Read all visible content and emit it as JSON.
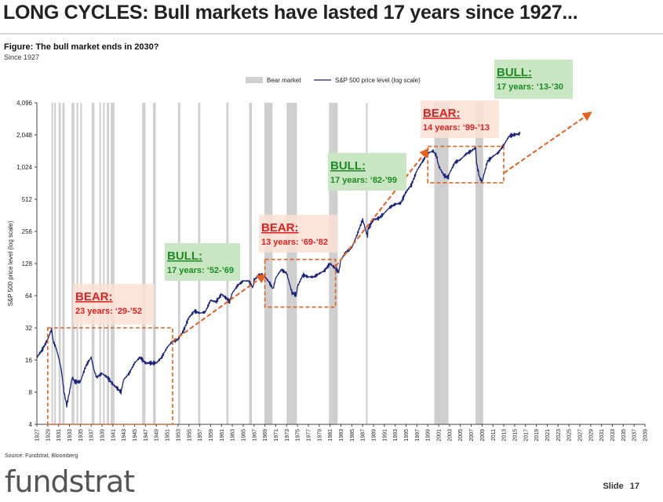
{
  "header": {
    "title": "LONG CYCLES: Bull markets have lasted 17 years since 1927...",
    "figure_title": "Figure: The bull market ends in 2030?",
    "figure_subtitle": "Since 1927"
  },
  "footer": {
    "source": "Source: Fundstrat, Bloomberg",
    "logo_text": "fundstrat",
    "slide_label": "Slide",
    "slide_number": "17"
  },
  "colors": {
    "line": "#1a237e",
    "bear_band": "#cfcfcf",
    "arrow": "#e8601c",
    "bull_box": "#c9e7c2",
    "bull_text": "#1e8a24",
    "bear_box": "#fbe0d4",
    "bear_text": "#e02020"
  },
  "chart_data": {
    "type": "line",
    "ylabel": "S&P 500 price level (log scale)",
    "y_scale": "log2",
    "ylim": [
      4,
      4096
    ],
    "y_ticks": [
      "4,096",
      "2,048",
      "1,024",
      "512",
      "256",
      "128",
      "64",
      "32",
      "16",
      "8",
      "4"
    ],
    "xlim": [
      1927,
      2039
    ],
    "x_ticks": [
      "1927",
      "1929",
      "1931",
      "1933",
      "1935",
      "1937",
      "1939",
      "1941",
      "1943",
      "1945",
      "1947",
      "1949",
      "1951",
      "1953",
      "1955",
      "1957",
      "1959",
      "1961",
      "1963",
      "1965",
      "1967",
      "1969",
      "1971",
      "1973",
      "1975",
      "1977",
      "1979",
      "1981",
      "1983",
      "1985",
      "1987",
      "1989",
      "1991",
      "1993",
      "1995",
      "1997",
      "1999",
      "2001",
      "2003",
      "2005",
      "2007",
      "2009",
      "2011",
      "2013",
      "2015",
      "2017",
      "2019",
      "2021",
      "2023",
      "2025",
      "2027",
      "2029",
      "2031",
      "2033",
      "2035",
      "2037",
      "2039"
    ],
    "legend": [
      {
        "name": "Bear market",
        "kind": "band"
      },
      {
        "name": "S&P 500 price level (log scale)",
        "kind": "line"
      }
    ],
    "bear_markets": [
      [
        1929.7,
        1929.9
      ],
      [
        1930.2,
        1930.5
      ],
      [
        1931.0,
        1931.4
      ],
      [
        1931.7,
        1932.1
      ],
      [
        1933.4,
        1933.9
      ],
      [
        1934.3,
        1934.6
      ],
      [
        1935.0,
        1935.2
      ],
      [
        1937.1,
        1937.6
      ],
      [
        1938.5,
        1938.8
      ],
      [
        1939.2,
        1939.5
      ],
      [
        1939.9,
        1940.3
      ],
      [
        1940.6,
        1941.3
      ],
      [
        1946.4,
        1947.0
      ],
      [
        1948.4,
        1948.9
      ],
      [
        1953.0,
        1953.4
      ],
      [
        1956.7,
        1957.1
      ],
      [
        1961.9,
        1962.3
      ],
      [
        1966.1,
        1966.6
      ],
      [
        1968.9,
        1970.4
      ],
      [
        1973.0,
        1974.9
      ],
      [
        1980.8,
        1982.4
      ],
      [
        1987.6,
        1987.9
      ],
      [
        2000.2,
        2002.8
      ],
      [
        2007.8,
        2009.2
      ]
    ],
    "series": [
      {
        "name": "S&P 500 price level (log scale)",
        "x": [
          1927,
          1928,
          1929,
          1929.7,
          1930,
          1930.5,
          1931,
          1931.5,
          1932,
          1932.5,
          1933,
          1933.5,
          1934,
          1935,
          1936,
          1937,
          1937.5,
          1938,
          1939,
          1940,
          1941,
          1942,
          1942.5,
          1943,
          1944,
          1945,
          1946,
          1947,
          1948,
          1949,
          1950,
          1951,
          1952,
          1953,
          1954,
          1955,
          1956,
          1957,
          1958,
          1959,
          1960,
          1961,
          1962,
          1962.5,
          1963,
          1964,
          1965,
          1966,
          1966.8,
          1967,
          1968,
          1969,
          1970,
          1970.5,
          1971,
          1972,
          1973,
          1974,
          1974.8,
          1975,
          1976,
          1977,
          1978,
          1979,
          1980,
          1981,
          1982,
          1982.6,
          1983,
          1984,
          1985,
          1986,
          1987,
          1987.9,
          1988,
          1989,
          1990,
          1991,
          1992,
          1993,
          1994,
          1995,
          1996,
          1997,
          1998,
          1999,
          2000,
          2000.6,
          2001,
          2002,
          2002.8,
          2003,
          2004,
          2005,
          2006,
          2007,
          2007.8,
          2008,
          2008.5,
          2009,
          2009.2,
          2010,
          2011,
          2012,
          2013,
          2014,
          2015,
          2016
        ],
        "y": [
          17,
          20,
          25,
          31,
          24,
          21,
          17,
          13,
          8,
          6,
          8,
          11,
          10,
          10,
          14,
          17,
          13,
          11,
          12,
          11,
          9.5,
          8.5,
          8,
          10.5,
          12,
          15,
          17,
          15,
          15,
          15,
          17,
          21,
          24,
          25,
          30,
          40,
          46,
          44,
          45,
          58,
          56,
          66,
          60,
          56,
          68,
          80,
          88,
          88,
          76,
          90,
          100,
          97,
          82,
          74,
          94,
          112,
          104,
          68,
          65,
          78,
          100,
          96,
          96,
          103,
          110,
          128,
          115,
          106,
          140,
          165,
          180,
          240,
          330,
          230,
          270,
          330,
          340,
          380,
          430,
          460,
          470,
          600,
          700,
          950,
          1150,
          1380,
          1450,
          1300,
          1050,
          850,
          820,
          900,
          1130,
          1200,
          1350,
          1450,
          1550,
          1100,
          830,
          740,
          820,
          1160,
          1290,
          1400,
          1650,
          2000,
          2060,
          2100
        ]
      }
    ],
    "annotations": [
      {
        "type": "bear",
        "label": "BEAR:",
        "detail": "23 years: ‘29-’52"
      },
      {
        "type": "bull",
        "label": "BULL:",
        "detail": "17 years: ‘52-’69"
      },
      {
        "type": "bear",
        "label": "BEAR:",
        "detail": "13 years: ‘69-’82"
      },
      {
        "type": "bull",
        "label": "BULL:",
        "detail": "17 years: ‘82-’99"
      },
      {
        "type": "bear",
        "label": "BEAR:",
        "detail": "14 years: ‘99-’13"
      },
      {
        "type": "bull",
        "label": "BULL:",
        "detail": "17 years: ‘13-’30"
      }
    ],
    "cycle_boxes": [
      {
        "x": [
          1929,
          1952
        ],
        "y": [
          4,
          32
        ]
      },
      {
        "x": [
          1969,
          1982
        ],
        "y": [
          50,
          140
        ]
      },
      {
        "x": [
          1999,
          2013
        ],
        "y": [
          730,
          1600
        ]
      }
    ],
    "trend_arrows": [
      {
        "x": [
          1952,
          1969
        ],
        "y": [
          24,
          100
        ]
      },
      {
        "x": [
          1982,
          1999
        ],
        "y": [
          120,
          1500
        ]
      },
      {
        "x": [
          2013,
          2029
        ],
        "y": [
          900,
          3300
        ]
      }
    ]
  }
}
